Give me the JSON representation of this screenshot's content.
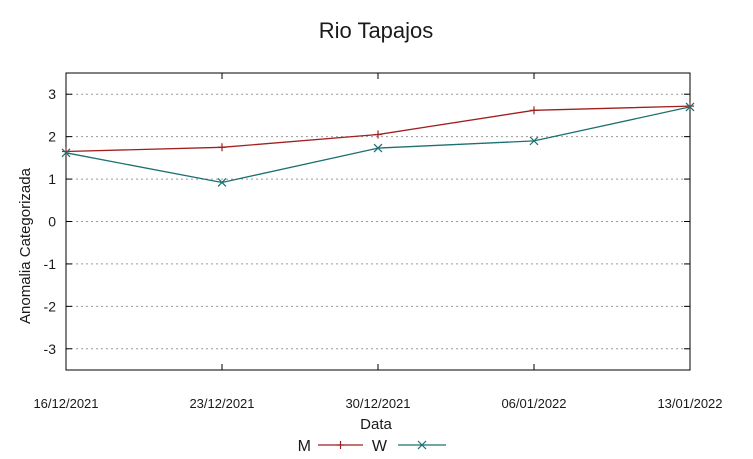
{
  "chart_data": {
    "type": "line",
    "title": "Rio Tapajos",
    "xlabel": "Data",
    "ylabel": "Anomalia Categorizada",
    "categories": [
      "16/12/2021",
      "23/12/2021",
      "30/12/2021",
      "06/01/2022",
      "13/01/2022"
    ],
    "y_ticks": [
      "3",
      "2",
      "1",
      "0",
      "-1",
      "-2",
      "-3"
    ],
    "ylim": [
      -3.5,
      3.5
    ],
    "grid": "horizontal-dotted",
    "legend_position": "bottom",
    "series": [
      {
        "name": "M",
        "values": [
          1.65,
          1.75,
          2.05,
          2.62,
          2.72
        ],
        "color": "#a01f1f",
        "marker": "plus"
      },
      {
        "name": "W",
        "values": [
          1.62,
          0.92,
          1.73,
          1.9,
          2.7
        ],
        "color": "#1b7070",
        "marker": "x"
      }
    ]
  }
}
